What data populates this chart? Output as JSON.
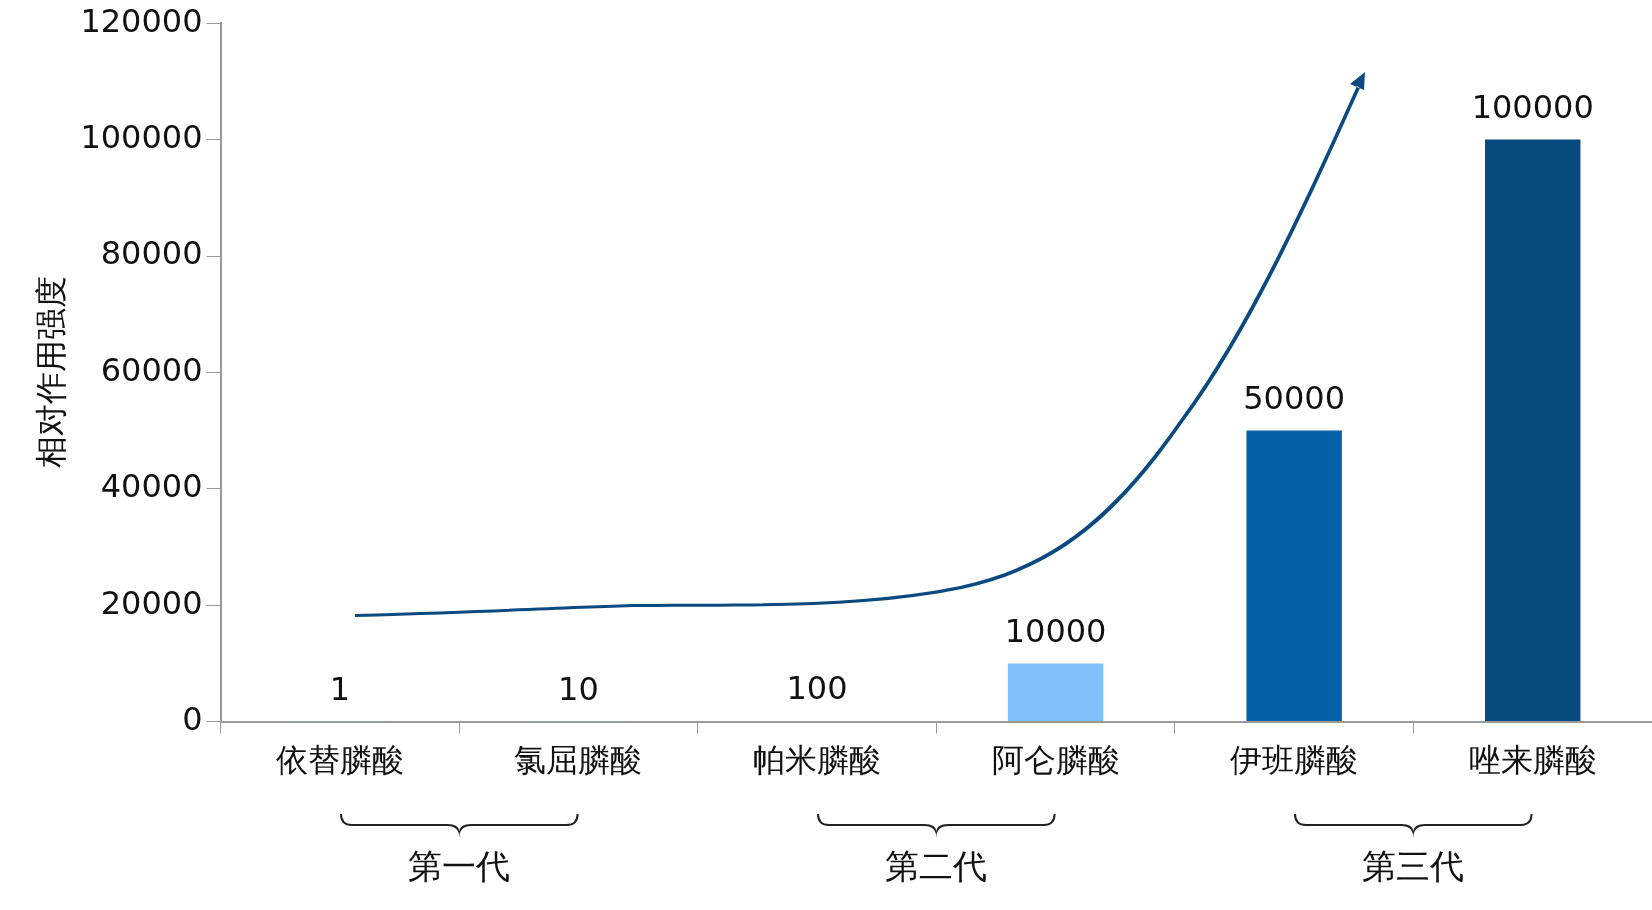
{
  "chart_data": {
    "type": "bar",
    "ylabel": "相对作用强度",
    "categories": [
      "依替膦酸",
      "氯屈膦酸",
      "帕米膦酸",
      "阿仑膦酸",
      "伊班膦酸",
      "唑来膦酸"
    ],
    "values": [
      1,
      10,
      100,
      10000,
      50000,
      100000
    ],
    "colors": [
      "#7fbffa",
      "#7fbffa",
      "#7fbffa",
      "#7fbffa",
      "#0560a8",
      "#064a7e"
    ],
    "ylim": [
      0,
      120000
    ],
    "yticks": [
      0,
      20000,
      40000,
      60000,
      80000,
      100000,
      120000
    ],
    "grid": false,
    "legend": false,
    "data_labels": true,
    "annotations": [
      "第一代",
      "第二代",
      "第三代"
    ]
  }
}
